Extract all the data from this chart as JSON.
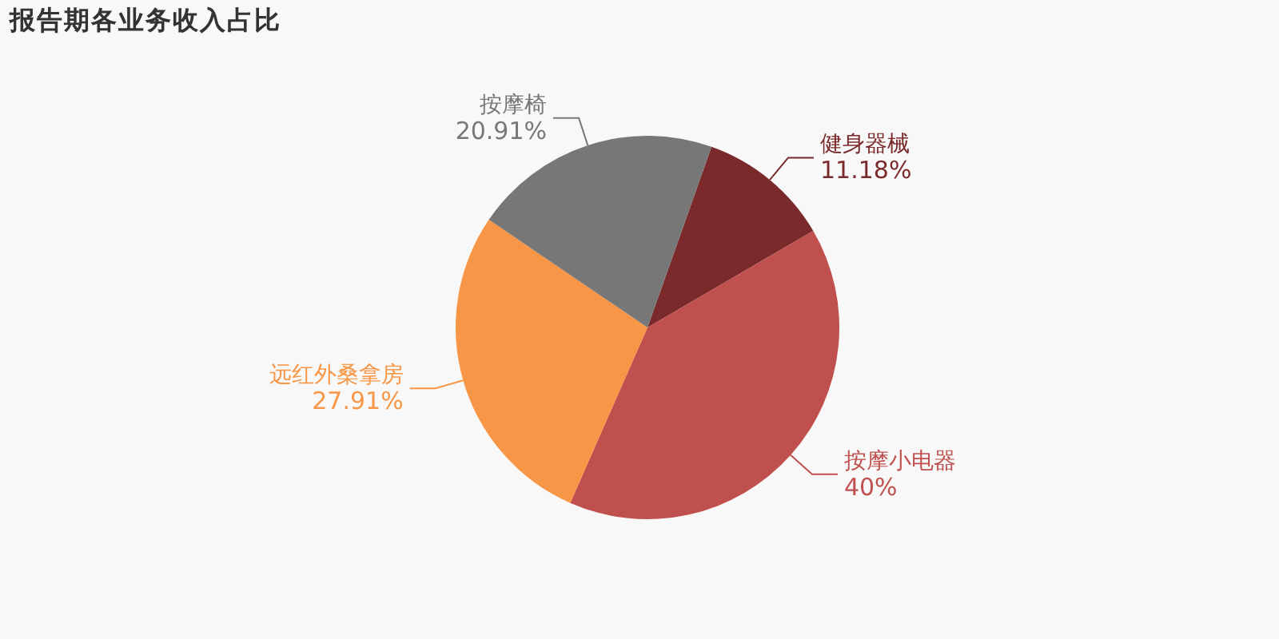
{
  "chart_data": {
    "type": "pie",
    "title": "报告期各业务收入占比",
    "categories": [
      "健身器械",
      "按摩小电器",
      "远红外桑拿房",
      "按摩椅"
    ],
    "values": [
      11.18,
      40,
      27.91,
      20.91
    ],
    "colors": [
      "#7a2a2a",
      "#c0504d",
      "#f79646",
      "#777777"
    ],
    "value_labels": [
      "11.18%",
      "40%",
      "27.91%",
      "20.91%"
    ]
  }
}
